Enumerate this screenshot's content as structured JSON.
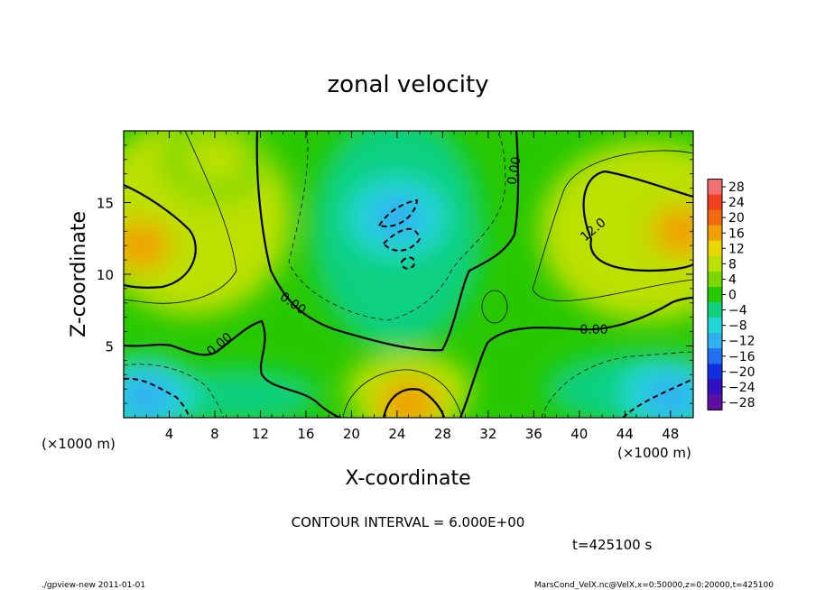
{
  "chart_data": {
    "type": "heatmap",
    "title": "zonal velocity",
    "xlabel": "X-coordinate",
    "ylabel": "Z-coordinate",
    "x_unit_label": "(×1000 m)",
    "y_unit_label": "(×1000 m)",
    "xlim": [
      0,
      50
    ],
    "ylim": [
      0,
      20
    ],
    "x_ticks": [
      4,
      8,
      12,
      16,
      20,
      24,
      28,
      32,
      36,
      40,
      44,
      48
    ],
    "y_ticks": [
      5,
      10,
      15
    ],
    "colorbar": {
      "levels": [
        28,
        24,
        20,
        16,
        12,
        8,
        4,
        0,
        -4,
        -8,
        -12,
        -16,
        -20,
        -24,
        -28
      ],
      "colors": [
        "#f07070",
        "#f04020",
        "#f06a10",
        "#f0a000",
        "#e8d800",
        "#bce000",
        "#7cd800",
        "#28c800",
        "#10d080",
        "#20d8d8",
        "#30b0f0",
        "#2070f0",
        "#1030e0",
        "#3010c0",
        "#6010a0"
      ]
    },
    "contour_labels": [
      "0.00",
      "0.00",
      "0.00",
      "0.00",
      "12.0"
    ],
    "field_features": [
      {
        "kind": "max",
        "x": 1.5,
        "z": 12,
        "value": 18
      },
      {
        "kind": "max",
        "x": 49,
        "z": 13,
        "value": 18
      },
      {
        "kind": "max",
        "x": 25,
        "z": 1,
        "value": 18
      },
      {
        "kind": "min",
        "x": 24,
        "z": 14,
        "value": -10
      },
      {
        "kind": "min",
        "x": 2,
        "z": 1.5,
        "value": -10
      },
      {
        "kind": "min",
        "x": 48,
        "z": 1.5,
        "value": -10
      },
      {
        "kind": "max",
        "x": 8,
        "z": 18,
        "value": 8
      }
    ],
    "contour_interval_text": "CONTOUR INTERVAL = 6.000E+00",
    "time_text": "t=425100 s"
  },
  "footer": {
    "left": "./gpview-new   2011-01-01",
    "right": "MarsCond_VelX.nc@VelX,x=0:50000,z=0:20000,t=425100"
  }
}
